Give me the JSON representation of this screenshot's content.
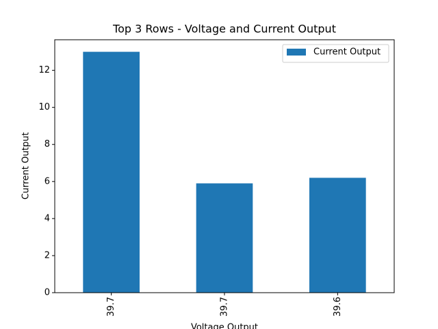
{
  "chart_data": {
    "type": "bar",
    "title": "Top 3 Rows - Voltage and Current Output",
    "xlabel": "Voltage Output",
    "ylabel": "Current Output",
    "categories": [
      "39.7",
      "39.7",
      "39.6"
    ],
    "series": [
      {
        "name": "Current Output",
        "color": "#1f77b4",
        "values": [
          13.0,
          5.9,
          6.2
        ]
      }
    ],
    "ylim": [
      0,
      13.65
    ],
    "yticks": [
      0,
      2,
      4,
      6,
      8,
      10,
      12
    ],
    "legend": "upper right"
  }
}
